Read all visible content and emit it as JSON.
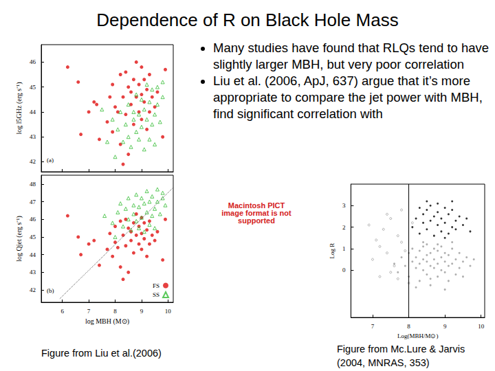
{
  "slide": {
    "title": "Dependence of R on Black Hole Mass",
    "bullets": [
      "Many studies have found that RLQs tend to have slightly larger MBH, but very poor correlation",
      "Liu et al. (2006, ApJ, 637) argue that it’s more appropriate to compare the jet power with MBH, find significant correlation with"
    ],
    "placeholder": "Macintosh PICT image format is not supported",
    "captions": [
      "Figure from Liu et al.(2006)",
      "Figure from Mc.Lure & Jarvis (2004, MNRAS, 353)"
    ]
  },
  "chart_data": [
    {
      "type": "scatter",
      "ylabel": "log l5GHz (erg s⁻¹)",
      "annotations": [
        "(a)"
      ],
      "xlim": [
        5.2,
        10.2
      ],
      "xticks": [
        6,
        7,
        8,
        9,
        10
      ],
      "ylim": [
        41.6,
        46.7
      ],
      "yticks": [
        42,
        43,
        44,
        45,
        46
      ],
      "grid": false,
      "tick_labels": "y",
      "series": [
        {
          "name": "FS",
          "color": "#e01010",
          "marker": "circle",
          "x": [
            6.2,
            6.6,
            6.7,
            7.2,
            7.3,
            7.4,
            7.7,
            7.8,
            7.9,
            7.9,
            8.0,
            8.1,
            8.2,
            8.2,
            8.3,
            8.4,
            8.4,
            8.5,
            8.5,
            8.6,
            8.6,
            8.7,
            8.7,
            8.8,
            8.8,
            8.9,
            8.9,
            9.0,
            9.0,
            9.0,
            9.1,
            9.1,
            9.2,
            9.2,
            9.3,
            9.3,
            9.4,
            9.5,
            9.6,
            9.9,
            8.3,
            9.8,
            7.0
          ],
          "values": [
            45.8,
            45.2,
            43.1,
            44.4,
            44.3,
            42.9,
            43.6,
            44.6,
            43.2,
            45.1,
            44.2,
            44.0,
            45.5,
            42.7,
            44.6,
            45.6,
            43.9,
            45.0,
            42.3,
            44.8,
            44.3,
            45.3,
            43.5,
            44.6,
            46.0,
            45.1,
            44.0,
            44.7,
            45.8,
            43.7,
            44.4,
            45.3,
            44.9,
            43.3,
            44.0,
            45.5,
            44.6,
            44.2,
            44.8,
            45.7,
            41.9,
            43.0,
            44.0
          ]
        },
        {
          "name": "SS",
          "color": "#33bb33",
          "marker": "open_triangle",
          "x": [
            7.9,
            8.1,
            8.2,
            8.3,
            8.4,
            8.5,
            8.5,
            8.6,
            8.7,
            8.7,
            8.8,
            8.8,
            8.9,
            8.9,
            9.0,
            9.0,
            9.1,
            9.1,
            9.2,
            9.2,
            9.3,
            9.3,
            9.4,
            9.4,
            9.5,
            9.5,
            9.6,
            9.6,
            9.7,
            9.8,
            9.8,
            7.5,
            7.7,
            8.0
          ],
          "values": [
            43.7,
            43.3,
            44.0,
            42.8,
            43.5,
            44.3,
            43.0,
            42.6,
            44.0,
            43.7,
            43.2,
            44.7,
            42.9,
            43.9,
            44.5,
            43.4,
            42.5,
            44.1,
            43.7,
            45.1,
            42.9,
            44.4,
            43.5,
            44.9,
            43.9,
            42.7,
            44.3,
            45.0,
            43.6,
            44.6,
            45.2,
            44.1,
            42.8,
            42.2
          ]
        }
      ]
    },
    {
      "type": "scatter",
      "xlabel": "log MBH (M⊙)",
      "ylabel": "log Qjet (erg s⁻¹)",
      "annotations": [
        "(b)"
      ],
      "xlim": [
        5.2,
        10.2
      ],
      "xticks": [
        6,
        7,
        8,
        9,
        10
      ],
      "ylim": [
        41.3,
        48.5
      ],
      "yticks": [
        42,
        43,
        44,
        45,
        46,
        47,
        48
      ],
      "grid": false,
      "legend": "lower right",
      "series": [
        {
          "name": "FS",
          "color": "#e01010",
          "marker": "circle",
          "x": [
            6.2,
            6.6,
            6.7,
            7.2,
            7.4,
            7.7,
            7.8,
            7.9,
            8.0,
            8.0,
            8.1,
            8.2,
            8.2,
            8.3,
            8.4,
            8.4,
            8.5,
            8.5,
            8.6,
            8.6,
            8.7,
            8.7,
            8.8,
            8.8,
            8.9,
            8.9,
            9.0,
            9.0,
            9.0,
            9.1,
            9.1,
            9.2,
            9.2,
            9.3,
            9.3,
            9.4,
            9.5,
            9.6,
            9.9,
            8.3,
            9.8,
            7.0
          ],
          "values": [
            46.2,
            45.0,
            44.0,
            44.8,
            43.4,
            44.3,
            45.2,
            43.9,
            45.6,
            44.7,
            44.4,
            45.9,
            43.3,
            45.1,
            46.0,
            44.5,
            45.5,
            43.0,
            45.3,
            44.8,
            45.8,
            44.1,
            45.1,
            46.3,
            45.6,
            44.6,
            45.2,
            46.1,
            44.3,
            44.9,
            45.8,
            45.4,
            43.9,
            44.6,
            45.9,
            45.1,
            44.8,
            45.3,
            46.0,
            42.6,
            43.7,
            44.6
          ]
        },
        {
          "name": "SS",
          "color": "#33bb33",
          "marker": "open_triangle",
          "x": [
            7.6,
            7.9,
            8.1,
            8.2,
            8.3,
            8.4,
            8.5,
            8.5,
            8.6,
            8.7,
            8.7,
            8.8,
            8.8,
            8.9,
            8.9,
            9.0,
            9.0,
            9.1,
            9.1,
            9.2,
            9.2,
            9.3,
            9.3,
            9.4,
            9.4,
            9.5,
            9.5,
            9.6,
            9.6,
            9.7,
            9.8,
            9.8,
            8.0,
            9.9
          ],
          "values": [
            46.2,
            45.8,
            46.4,
            46.9,
            45.6,
            46.6,
            47.2,
            46.0,
            45.4,
            46.8,
            46.3,
            45.9,
            47.4,
            45.5,
            46.7,
            47.2,
            46.1,
            45.3,
            46.9,
            46.4,
            47.6,
            45.7,
            47.0,
            46.2,
            47.3,
            46.6,
            45.5,
            47.0,
            47.7,
            46.3,
            47.2,
            47.5,
            45.0,
            46.8
          ]
        },
        {
          "type": "line",
          "color": "#555555",
          "line_style": "dotted",
          "x": [
            5.9,
            10.2
          ],
          "values": [
            41.5,
            47.8
          ]
        }
      ]
    },
    {
      "type": "scatter",
      "xlabel": "Log(MBH/M⊙)",
      "ylabel": "Log R",
      "xlim": [
        6.4,
        10.1
      ],
      "xticks": [
        7,
        8,
        9,
        10
      ],
      "ylim": [
        -2.2,
        4
      ],
      "yticks": [
        0,
        1,
        2,
        3
      ],
      "grid": false,
      "series": [
        {
          "color": "#9a9a9a",
          "marker": "circle",
          "x": [
            7.6,
            7.7,
            7.8,
            7.9,
            8.0,
            8.0,
            8.1,
            8.1,
            8.2,
            8.2,
            8.3,
            8.3,
            8.3,
            8.4,
            8.4,
            8.4,
            8.5,
            8.5,
            8.5,
            8.5,
            8.6,
            8.6,
            8.6,
            8.7,
            8.7,
            8.7,
            8.8,
            8.8,
            8.8,
            8.9,
            8.9,
            8.9,
            9.0,
            9.0,
            9.0,
            9.1,
            9.1,
            9.1,
            9.2,
            9.2,
            9.3,
            9.3,
            9.4,
            9.4,
            9.5,
            9.5,
            9.6,
            9.7,
            9.8,
            8.2,
            8.6,
            9.0,
            8.4,
            8.8,
            9.2
          ],
          "values": [
            0.3,
            -0.1,
            0.6,
            0.2,
            0.8,
            -0.3,
            0.4,
            1.0,
            0.1,
            0.6,
            -0.5,
            0.3,
            0.9,
            0.0,
            0.5,
            1.1,
            -0.2,
            0.4,
            0.7,
            1.2,
            0.2,
            -0.4,
            0.8,
            0.1,
            0.5,
            1.0,
            -0.3,
            0.3,
            0.9,
            0.0,
            0.6,
            1.1,
            -0.1,
            0.4,
            0.8,
            0.2,
            -0.5,
            0.7,
            0.3,
            1.0,
            -0.2,
            0.5,
            0.1,
            0.8,
            0.4,
            -0.3,
            0.6,
            0.2,
            0.5,
            -0.8,
            -0.7,
            -0.9,
            1.3,
            1.2,
            1.3
          ]
        },
        {
          "color": "#000000",
          "marker": "circle",
          "x": [
            8.1,
            8.2,
            8.3,
            8.3,
            8.4,
            8.4,
            8.5,
            8.5,
            8.6,
            8.6,
            8.7,
            8.7,
            8.8,
            8.8,
            8.9,
            8.9,
            9.0,
            9.0,
            9.1,
            9.1,
            9.2,
            9.2,
            9.3,
            9.3,
            9.4,
            9.5,
            9.6,
            9.7,
            8.5,
            8.8,
            9.0,
            9.2
          ],
          "values": [
            2.0,
            2.4,
            1.7,
            2.9,
            2.2,
            2.6,
            1.9,
            2.8,
            2.3,
            3.0,
            1.6,
            2.5,
            2.1,
            2.7,
            1.8,
            2.4,
            2.2,
            2.9,
            1.7,
            2.6,
            2.0,
            2.8,
            2.3,
            1.9,
            2.5,
            2.1,
            2.4,
            1.8,
            3.2,
            3.1,
            1.5,
            3.2
          ]
        },
        {
          "color": "#888888",
          "marker": "open_circle",
          "x": [
            6.9,
            7.0,
            7.1,
            7.2,
            7.3,
            7.4,
            7.5,
            7.6,
            7.7,
            7.8,
            7.9,
            8.0,
            7.2,
            7.5,
            7.8,
            8.1,
            7.4,
            7.7
          ],
          "values": [
            2.1,
            0.5,
            1.4,
            -0.3,
            1.9,
            0.8,
            2.4,
            0.2,
            1.6,
            2.8,
            0.9,
            -0.6,
            1.1,
            -0.1,
            1.3,
            2.2,
            2.6,
            -0.4
          ]
        },
        {
          "type": "line",
          "color": "#000000",
          "line_style": "solid",
          "x": [
            8,
            8
          ],
          "values": [
            -2.2,
            4
          ]
        }
      ]
    }
  ]
}
